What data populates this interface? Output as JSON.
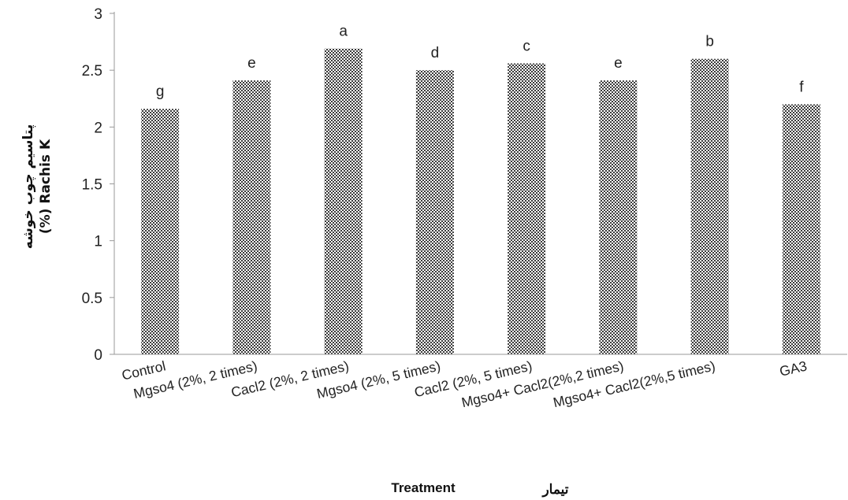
{
  "chart_data": {
    "type": "bar",
    "categories": [
      "Control",
      "Mgso4 (2%, 2 times)",
      "Cacl2 (2%, 2 times)",
      "Mgso4 (2%, 5 times)",
      "Cacl2 (2%, 5 times)",
      "Mgso4+ Cacl2(2%,2 times)",
      "Mgso4+ Cacl2(2%,5 times)",
      "GA3"
    ],
    "values": [
      2.16,
      2.41,
      2.69,
      2.5,
      2.56,
      2.41,
      2.6,
      2.2
    ],
    "significance_letters": [
      "g",
      "e",
      "a",
      "d",
      "c",
      "e",
      "b",
      "f"
    ],
    "title": "",
    "xlabel": "Treatment",
    "xlabel_fa": "تیمار",
    "ylabel_line1": "پتاسیم چوب خوشه",
    "ylabel_line2": "(%) Rachis K",
    "ylim": [
      0,
      3
    ],
    "yticks": [
      "0",
      "0.5",
      "1",
      "1.5",
      "2",
      "2.5",
      "3"
    ],
    "grid": false,
    "legend": "none",
    "bar_pattern": "checkered",
    "colors": {
      "bar_dark": "#3a3a3a",
      "bar_light": "#ffffff",
      "axis": "#999999",
      "text": "#222222"
    }
  }
}
